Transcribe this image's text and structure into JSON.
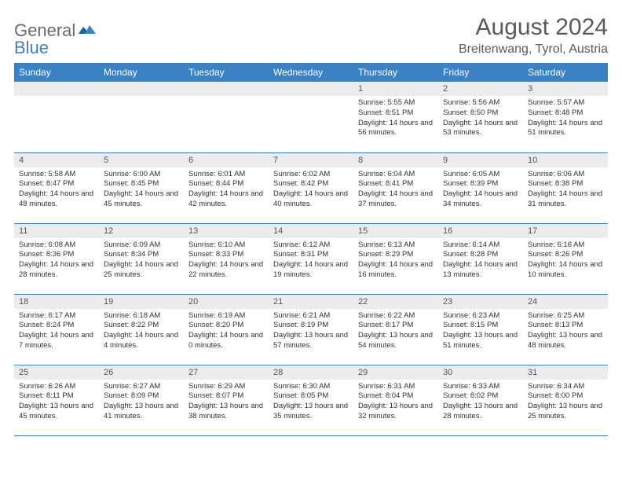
{
  "brand": {
    "part1": "General",
    "part2": "Blue"
  },
  "title": "August 2024",
  "location": "Breitenwang, Tyrol, Austria",
  "colors": {
    "header_bg": "#3b82c4",
    "header_text": "#ffffff",
    "daynum_bg": "#ececec",
    "border": "#3b82c4",
    "brand_gray": "#6b6b6b",
    "brand_blue": "#3b82c4"
  },
  "weekdays": [
    "Sunday",
    "Monday",
    "Tuesday",
    "Wednesday",
    "Thursday",
    "Friday",
    "Saturday"
  ],
  "weeks": [
    [
      {
        "n": "",
        "sr": "",
        "ss": "",
        "dl": ""
      },
      {
        "n": "",
        "sr": "",
        "ss": "",
        "dl": ""
      },
      {
        "n": "",
        "sr": "",
        "ss": "",
        "dl": ""
      },
      {
        "n": "",
        "sr": "",
        "ss": "",
        "dl": ""
      },
      {
        "n": "1",
        "sr": "Sunrise: 5:55 AM",
        "ss": "Sunset: 8:51 PM",
        "dl": "Daylight: 14 hours and 56 minutes."
      },
      {
        "n": "2",
        "sr": "Sunrise: 5:56 AM",
        "ss": "Sunset: 8:50 PM",
        "dl": "Daylight: 14 hours and 53 minutes."
      },
      {
        "n": "3",
        "sr": "Sunrise: 5:57 AM",
        "ss": "Sunset: 8:48 PM",
        "dl": "Daylight: 14 hours and 51 minutes."
      }
    ],
    [
      {
        "n": "4",
        "sr": "Sunrise: 5:58 AM",
        "ss": "Sunset: 8:47 PM",
        "dl": "Daylight: 14 hours and 48 minutes."
      },
      {
        "n": "5",
        "sr": "Sunrise: 6:00 AM",
        "ss": "Sunset: 8:45 PM",
        "dl": "Daylight: 14 hours and 45 minutes."
      },
      {
        "n": "6",
        "sr": "Sunrise: 6:01 AM",
        "ss": "Sunset: 8:44 PM",
        "dl": "Daylight: 14 hours and 42 minutes."
      },
      {
        "n": "7",
        "sr": "Sunrise: 6:02 AM",
        "ss": "Sunset: 8:42 PM",
        "dl": "Daylight: 14 hours and 40 minutes."
      },
      {
        "n": "8",
        "sr": "Sunrise: 6:04 AM",
        "ss": "Sunset: 8:41 PM",
        "dl": "Daylight: 14 hours and 37 minutes."
      },
      {
        "n": "9",
        "sr": "Sunrise: 6:05 AM",
        "ss": "Sunset: 8:39 PM",
        "dl": "Daylight: 14 hours and 34 minutes."
      },
      {
        "n": "10",
        "sr": "Sunrise: 6:06 AM",
        "ss": "Sunset: 8:38 PM",
        "dl": "Daylight: 14 hours and 31 minutes."
      }
    ],
    [
      {
        "n": "11",
        "sr": "Sunrise: 6:08 AM",
        "ss": "Sunset: 8:36 PM",
        "dl": "Daylight: 14 hours and 28 minutes."
      },
      {
        "n": "12",
        "sr": "Sunrise: 6:09 AM",
        "ss": "Sunset: 8:34 PM",
        "dl": "Daylight: 14 hours and 25 minutes."
      },
      {
        "n": "13",
        "sr": "Sunrise: 6:10 AM",
        "ss": "Sunset: 8:33 PM",
        "dl": "Daylight: 14 hours and 22 minutes."
      },
      {
        "n": "14",
        "sr": "Sunrise: 6:12 AM",
        "ss": "Sunset: 8:31 PM",
        "dl": "Daylight: 14 hours and 19 minutes."
      },
      {
        "n": "15",
        "sr": "Sunrise: 6:13 AM",
        "ss": "Sunset: 8:29 PM",
        "dl": "Daylight: 14 hours and 16 minutes."
      },
      {
        "n": "16",
        "sr": "Sunrise: 6:14 AM",
        "ss": "Sunset: 8:28 PM",
        "dl": "Daylight: 14 hours and 13 minutes."
      },
      {
        "n": "17",
        "sr": "Sunrise: 6:16 AM",
        "ss": "Sunset: 8:26 PM",
        "dl": "Daylight: 14 hours and 10 minutes."
      }
    ],
    [
      {
        "n": "18",
        "sr": "Sunrise: 6:17 AM",
        "ss": "Sunset: 8:24 PM",
        "dl": "Daylight: 14 hours and 7 minutes."
      },
      {
        "n": "19",
        "sr": "Sunrise: 6:18 AM",
        "ss": "Sunset: 8:22 PM",
        "dl": "Daylight: 14 hours and 4 minutes."
      },
      {
        "n": "20",
        "sr": "Sunrise: 6:19 AM",
        "ss": "Sunset: 8:20 PM",
        "dl": "Daylight: 14 hours and 0 minutes."
      },
      {
        "n": "21",
        "sr": "Sunrise: 6:21 AM",
        "ss": "Sunset: 8:19 PM",
        "dl": "Daylight: 13 hours and 57 minutes."
      },
      {
        "n": "22",
        "sr": "Sunrise: 6:22 AM",
        "ss": "Sunset: 8:17 PM",
        "dl": "Daylight: 13 hours and 54 minutes."
      },
      {
        "n": "23",
        "sr": "Sunrise: 6:23 AM",
        "ss": "Sunset: 8:15 PM",
        "dl": "Daylight: 13 hours and 51 minutes."
      },
      {
        "n": "24",
        "sr": "Sunrise: 6:25 AM",
        "ss": "Sunset: 8:13 PM",
        "dl": "Daylight: 13 hours and 48 minutes."
      }
    ],
    [
      {
        "n": "25",
        "sr": "Sunrise: 6:26 AM",
        "ss": "Sunset: 8:11 PM",
        "dl": "Daylight: 13 hours and 45 minutes."
      },
      {
        "n": "26",
        "sr": "Sunrise: 6:27 AM",
        "ss": "Sunset: 8:09 PM",
        "dl": "Daylight: 13 hours and 41 minutes."
      },
      {
        "n": "27",
        "sr": "Sunrise: 6:29 AM",
        "ss": "Sunset: 8:07 PM",
        "dl": "Daylight: 13 hours and 38 minutes."
      },
      {
        "n": "28",
        "sr": "Sunrise: 6:30 AM",
        "ss": "Sunset: 8:05 PM",
        "dl": "Daylight: 13 hours and 35 minutes."
      },
      {
        "n": "29",
        "sr": "Sunrise: 6:31 AM",
        "ss": "Sunset: 8:04 PM",
        "dl": "Daylight: 13 hours and 32 minutes."
      },
      {
        "n": "30",
        "sr": "Sunrise: 6:33 AM",
        "ss": "Sunset: 8:02 PM",
        "dl": "Daylight: 13 hours and 28 minutes."
      },
      {
        "n": "31",
        "sr": "Sunrise: 6:34 AM",
        "ss": "Sunset: 8:00 PM",
        "dl": "Daylight: 13 hours and 25 minutes."
      }
    ]
  ]
}
